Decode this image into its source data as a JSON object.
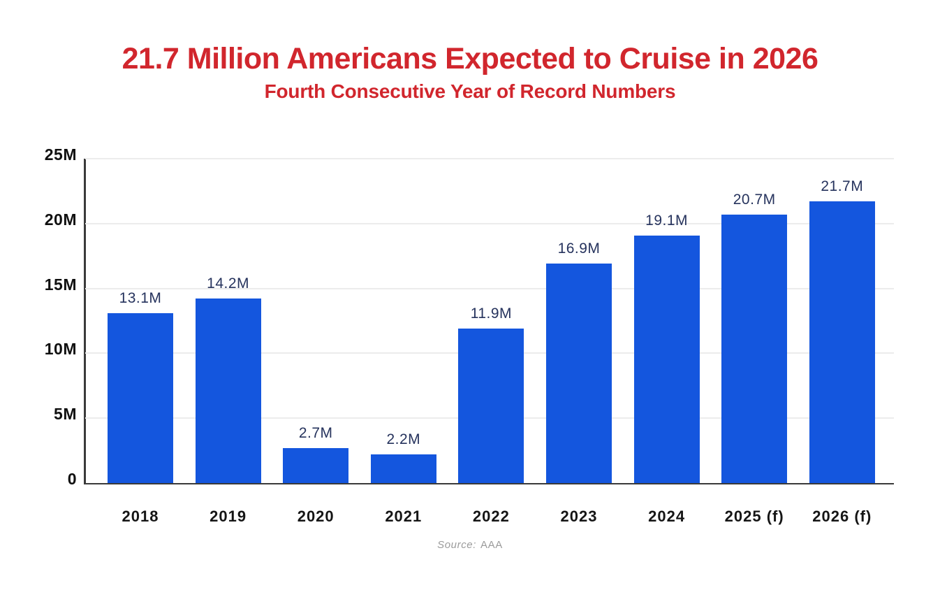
{
  "colors": {
    "bar": "#1456de",
    "title": "#d1262d",
    "value_label": "#26335d",
    "axis": "#3a3a3a",
    "grid": "#ececec",
    "tick": "#101010",
    "year": "#151515",
    "source": "#9b9b9b",
    "bg": "#ffffff"
  },
  "chart_data": {
    "type": "bar",
    "title": "21.7 Million Americans Expected to Cruise in 2026",
    "subtitle": "Fourth Consecutive Year of Record Numbers",
    "categories": [
      "2018",
      "2019",
      "2020",
      "2021",
      "2022",
      "2023",
      "2024",
      "2025 (f)",
      "2026 (f)"
    ],
    "values": [
      13.1,
      14.2,
      2.7,
      2.2,
      11.9,
      16.9,
      19.1,
      20.7,
      21.7
    ],
    "value_labels": [
      "13.1M",
      "14.2M",
      "2.7M",
      "2.2M",
      "11.9M",
      "16.9M",
      "19.1M",
      "20.7M",
      "21.7M"
    ],
    "xlabel": "",
    "ylabel": "",
    "ylim": [
      0,
      25
    ],
    "yticks": {
      "values": [
        0,
        5,
        10,
        15,
        20,
        25
      ],
      "labels": [
        "0",
        "5M",
        "10M",
        "15M",
        "20M",
        "25M"
      ]
    },
    "grid": "horizontal-only",
    "legend": "none",
    "bar_color": "#1456de",
    "source_prefix": "Source:",
    "source_name": "AAA"
  }
}
